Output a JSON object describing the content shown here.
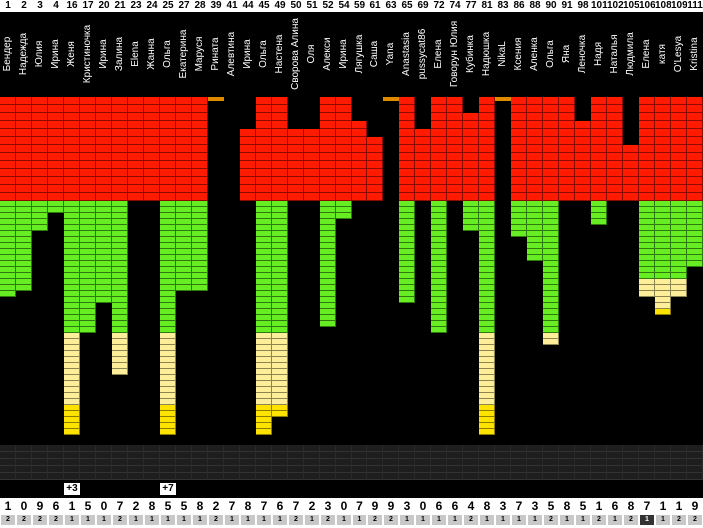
{
  "columns": [
    {
      "num": "1",
      "name": "Бендер",
      "score": "1",
      "level": "2"
    },
    {
      "num": "2",
      "name": "Надежда",
      "score": "0",
      "level": "2"
    },
    {
      "num": "3",
      "name": "Юлия",
      "score": "9",
      "level": "2"
    },
    {
      "num": "4",
      "name": "Ирина",
      "score": "6",
      "level": "2"
    },
    {
      "num": "16",
      "name": "Женя",
      "score": "1",
      "level": "1",
      "badge": "+3"
    },
    {
      "num": "17",
      "name": "Кристиночка",
      "score": "5",
      "level": "1"
    },
    {
      "num": "20",
      "name": "Ирина",
      "score": "0",
      "level": "1"
    },
    {
      "num": "21",
      "name": "Залина",
      "score": "7",
      "level": "2"
    },
    {
      "num": "23",
      "name": "Elena",
      "score": "2",
      "level": "1"
    },
    {
      "num": "24",
      "name": "Жанна",
      "score": "8",
      "level": "1"
    },
    {
      "num": "25",
      "name": "Ольга",
      "score": "5",
      "level": "1",
      "badge": "+7"
    },
    {
      "num": "27",
      "name": "Екатерина",
      "score": "5",
      "level": "1"
    },
    {
      "num": "28",
      "name": "Маруся",
      "score": "8",
      "level": "1"
    },
    {
      "num": "39",
      "name": "Рината",
      "score": "2",
      "level": "2"
    },
    {
      "num": "41",
      "name": "Алевтина",
      "score": "7",
      "level": "1"
    },
    {
      "num": "44",
      "name": "Ирина",
      "score": "8",
      "level": "1"
    },
    {
      "num": "45",
      "name": "Ольга",
      "score": "7",
      "level": "1"
    },
    {
      "num": "49",
      "name": "Настена",
      "score": "6",
      "level": "1"
    },
    {
      "num": "50",
      "name": "Сворова Алина",
      "score": "7",
      "level": "2"
    },
    {
      "num": "51",
      "name": "Оля",
      "score": "2",
      "level": "1"
    },
    {
      "num": "52",
      "name": "Алекси",
      "score": "3",
      "level": "2"
    },
    {
      "num": "54",
      "name": "Ирина",
      "score": "0",
      "level": "1"
    },
    {
      "num": "59",
      "name": "Лягушка",
      "score": "7",
      "level": "1"
    },
    {
      "num": "61",
      "name": "Саша",
      "score": "9",
      "level": "2"
    },
    {
      "num": "63",
      "name": "Yana",
      "score": "9",
      "level": "2"
    },
    {
      "num": "65",
      "name": "Anastasia",
      "score": "3",
      "level": "1"
    },
    {
      "num": "69",
      "name": "pussycat86",
      "score": "0",
      "level": "1"
    },
    {
      "num": "72",
      "name": "Елена",
      "score": "6",
      "level": "1"
    },
    {
      "num": "74",
      "name": "Говорун Юлия",
      "score": "6",
      "level": "1"
    },
    {
      "num": "77",
      "name": "Кубинка",
      "score": "4",
      "level": "2"
    },
    {
      "num": "81",
      "name": "Надюшка",
      "score": "8",
      "level": "1"
    },
    {
      "num": "83",
      "name": "NikaL",
      "score": "3",
      "level": "1"
    },
    {
      "num": "86",
      "name": "Ксения",
      "score": "7",
      "level": "1"
    },
    {
      "num": "88",
      "name": "Аленка",
      "score": "3",
      "level": "1"
    },
    {
      "num": "90",
      "name": "Ольга",
      "score": "5",
      "level": "2"
    },
    {
      "num": "91",
      "name": "Яна",
      "score": "8",
      "level": "1"
    },
    {
      "num": "98",
      "name": "Леночка",
      "score": "5",
      "level": "1"
    },
    {
      "num": "101",
      "name": "Надя",
      "score": "1",
      "level": "2"
    },
    {
      "num": "102",
      "name": "Наталья",
      "score": "6",
      "level": "1"
    },
    {
      "num": "105",
      "name": "Людмила",
      "score": "8",
      "level": "2"
    },
    {
      "num": "106",
      "name": "Елена",
      "score": "7",
      "level": "1"
    },
    {
      "num": "108",
      "name": "катя",
      "score": "1",
      "level": "1"
    },
    {
      "num": "109",
      "name": "O'Lesya",
      "score": "1",
      "level": "2"
    },
    {
      "num": "111",
      "name": "Kristina",
      "score": "9",
      "level": "2"
    }
  ],
  "colors": {
    "red": "#ff1a00",
    "green": "#66ee22",
    "yellow": "#ffee99",
    "gold": "#ffe300",
    "gray": "#1e1e1e",
    "orange": "#e08a00"
  }
}
